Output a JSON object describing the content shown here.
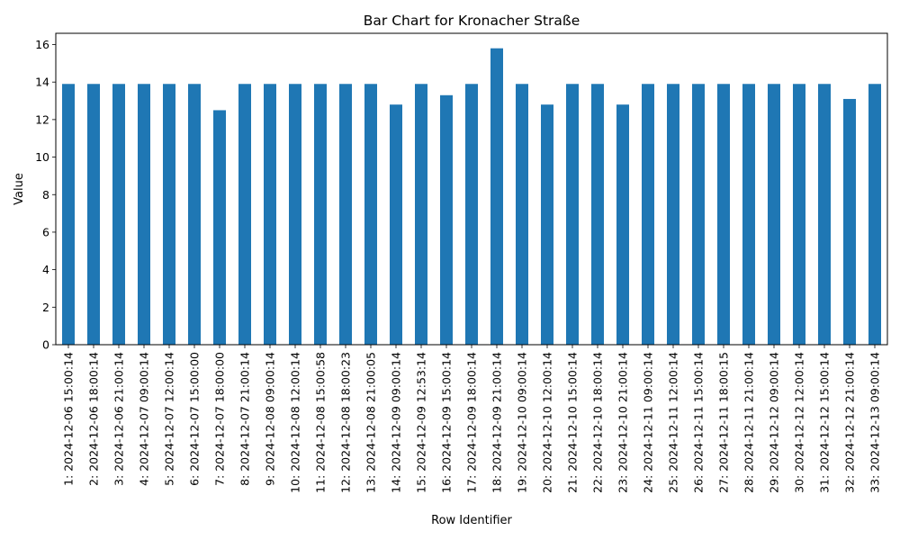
{
  "chart_data": {
    "type": "bar",
    "title": "Bar Chart for Kronacher Straße",
    "xlabel": "Row Identifier",
    "ylabel": "Value",
    "ylim": [
      0,
      16.6
    ],
    "yticks": [
      0,
      2,
      4,
      6,
      8,
      10,
      12,
      14,
      16
    ],
    "bar_color": "#1f77b4",
    "grid": false,
    "legend": "none",
    "categories": [
      "1: 2024-12-06 15:00:14",
      "2: 2024-12-06 18:00:14",
      "3: 2024-12-06 21:00:14",
      "4: 2024-12-07 09:00:14",
      "5: 2024-12-07 12:00:14",
      "6: 2024-12-07 15:00:00",
      "7: 2024-12-07 18:00:00",
      "8: 2024-12-07 21:00:14",
      "9: 2024-12-08 09:00:14",
      "10: 2024-12-08 12:00:14",
      "11: 2024-12-08 15:00:58",
      "12: 2024-12-08 18:00:23",
      "13: 2024-12-08 21:00:05",
      "14: 2024-12-09 09:00:14",
      "15: 2024-12-09 12:53:14",
      "16: 2024-12-09 15:00:14",
      "17: 2024-12-09 18:00:14",
      "18: 2024-12-09 21:00:14",
      "19: 2024-12-10 09:00:14",
      "20: 2024-12-10 12:00:14",
      "21: 2024-12-10 15:00:14",
      "22: 2024-12-10 18:00:14",
      "23: 2024-12-10 21:00:14",
      "24: 2024-12-11 09:00:14",
      "25: 2024-12-11 12:00:14",
      "26: 2024-12-11 15:00:14",
      "27: 2024-12-11 18:00:15",
      "28: 2024-12-11 21:00:14",
      "29: 2024-12-12 09:00:14",
      "30: 2024-12-12 12:00:14",
      "31: 2024-12-12 15:00:14",
      "32: 2024-12-12 21:00:14",
      "33: 2024-12-13 09:00:14"
    ],
    "values": [
      13.9,
      13.9,
      13.9,
      13.9,
      13.9,
      13.9,
      12.5,
      13.9,
      13.9,
      13.9,
      13.9,
      13.9,
      13.9,
      12.8,
      13.9,
      13.3,
      13.9,
      15.8,
      13.9,
      12.8,
      13.9,
      13.9,
      12.8,
      13.9,
      13.9,
      13.9,
      13.9,
      13.9,
      13.9,
      13.9,
      13.9,
      13.1,
      13.9
    ]
  }
}
